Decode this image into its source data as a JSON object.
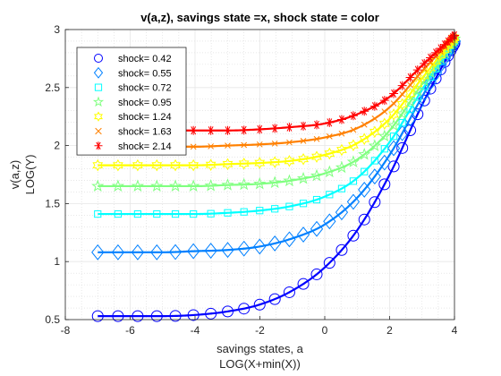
{
  "chart_data": {
    "type": "line",
    "title": "v(a,z), savings state =x, shock state = color",
    "xlabel": [
      "savings states, a",
      "LOG(X+min(X))"
    ],
    "ylabel": [
      "v(a,z)",
      "LOG(Y)"
    ],
    "xlim": [
      -8,
      4
    ],
    "ylim": [
      0.5,
      3
    ],
    "xticks": [
      -8,
      -6,
      -4,
      -2,
      0,
      2,
      4
    ],
    "yticks": [
      0.5,
      1,
      1.5,
      2,
      2.5,
      3
    ],
    "grid": true,
    "minor_grid": true,
    "legend_position": "top-left",
    "series": [
      {
        "name": "shock=  0.42",
        "marker": "circle",
        "color": "#0000ff",
        "x": [
          -7.0,
          -6.0,
          -5.0,
          -4.0,
          -3.0,
          -2.0,
          -1.0,
          0.0,
          1.0,
          2.0,
          3.0,
          4.0
        ],
        "y": [
          0.53,
          0.53,
          0.53,
          0.54,
          0.57,
          0.63,
          0.75,
          0.95,
          1.27,
          1.75,
          2.35,
          2.88
        ]
      },
      {
        "name": "shock=  0.55",
        "marker": "diamond",
        "color": "#0080ff",
        "x": [
          -7.0,
          -6.0,
          -5.0,
          -4.0,
          -3.0,
          -2.0,
          -1.0,
          0.0,
          1.0,
          2.0,
          3.0,
          4.0
        ],
        "y": [
          1.08,
          1.08,
          1.08,
          1.09,
          1.1,
          1.13,
          1.2,
          1.32,
          1.55,
          1.92,
          2.42,
          2.9
        ]
      },
      {
        "name": "shock=  0.72",
        "marker": "square",
        "color": "#00ffff",
        "x": [
          -7.0,
          -6.0,
          -5.0,
          -4.0,
          -3.0,
          -2.0,
          -1.0,
          0.0,
          1.0,
          2.0,
          3.0,
          4.0
        ],
        "y": [
          1.41,
          1.41,
          1.41,
          1.41,
          1.42,
          1.44,
          1.48,
          1.56,
          1.72,
          2.03,
          2.48,
          2.91
        ]
      },
      {
        "name": "shock=  0.95",
        "marker": "star5",
        "color": "#80ff80",
        "x": [
          -7.0,
          -6.0,
          -5.0,
          -4.0,
          -3.0,
          -2.0,
          -1.0,
          0.0,
          1.0,
          2.0,
          3.0,
          4.0
        ],
        "y": [
          1.65,
          1.65,
          1.65,
          1.65,
          1.66,
          1.67,
          1.7,
          1.76,
          1.88,
          2.13,
          2.53,
          2.92
        ]
      },
      {
        "name": "shock=  1.24",
        "marker": "hexagram",
        "color": "#ffff00",
        "x": [
          -7.0,
          -6.0,
          -5.0,
          -4.0,
          -3.0,
          -2.0,
          -1.0,
          0.0,
          1.0,
          2.0,
          3.0,
          4.0
        ],
        "y": [
          1.83,
          1.83,
          1.83,
          1.83,
          1.84,
          1.85,
          1.87,
          1.92,
          2.02,
          2.23,
          2.58,
          2.93
        ]
      },
      {
        "name": "shock=  1.63",
        "marker": "x",
        "color": "#ff8000",
        "x": [
          -7.0,
          -6.0,
          -5.0,
          -4.0,
          -3.0,
          -2.0,
          -1.0,
          0.0,
          1.0,
          2.0,
          3.0,
          4.0
        ],
        "y": [
          1.99,
          1.99,
          1.99,
          1.99,
          2.0,
          2.01,
          2.03,
          2.07,
          2.15,
          2.33,
          2.64,
          2.94
        ]
      },
      {
        "name": "shock=  2.14",
        "marker": "asterisk",
        "color": "#ff0000",
        "x": [
          -7.0,
          -6.0,
          -5.0,
          -4.0,
          -3.0,
          -2.0,
          -1.0,
          0.0,
          1.0,
          2.0,
          3.0,
          4.0
        ],
        "y": [
          2.13,
          2.13,
          2.13,
          2.13,
          2.13,
          2.14,
          2.16,
          2.19,
          2.27,
          2.42,
          2.69,
          2.95
        ]
      }
    ]
  }
}
